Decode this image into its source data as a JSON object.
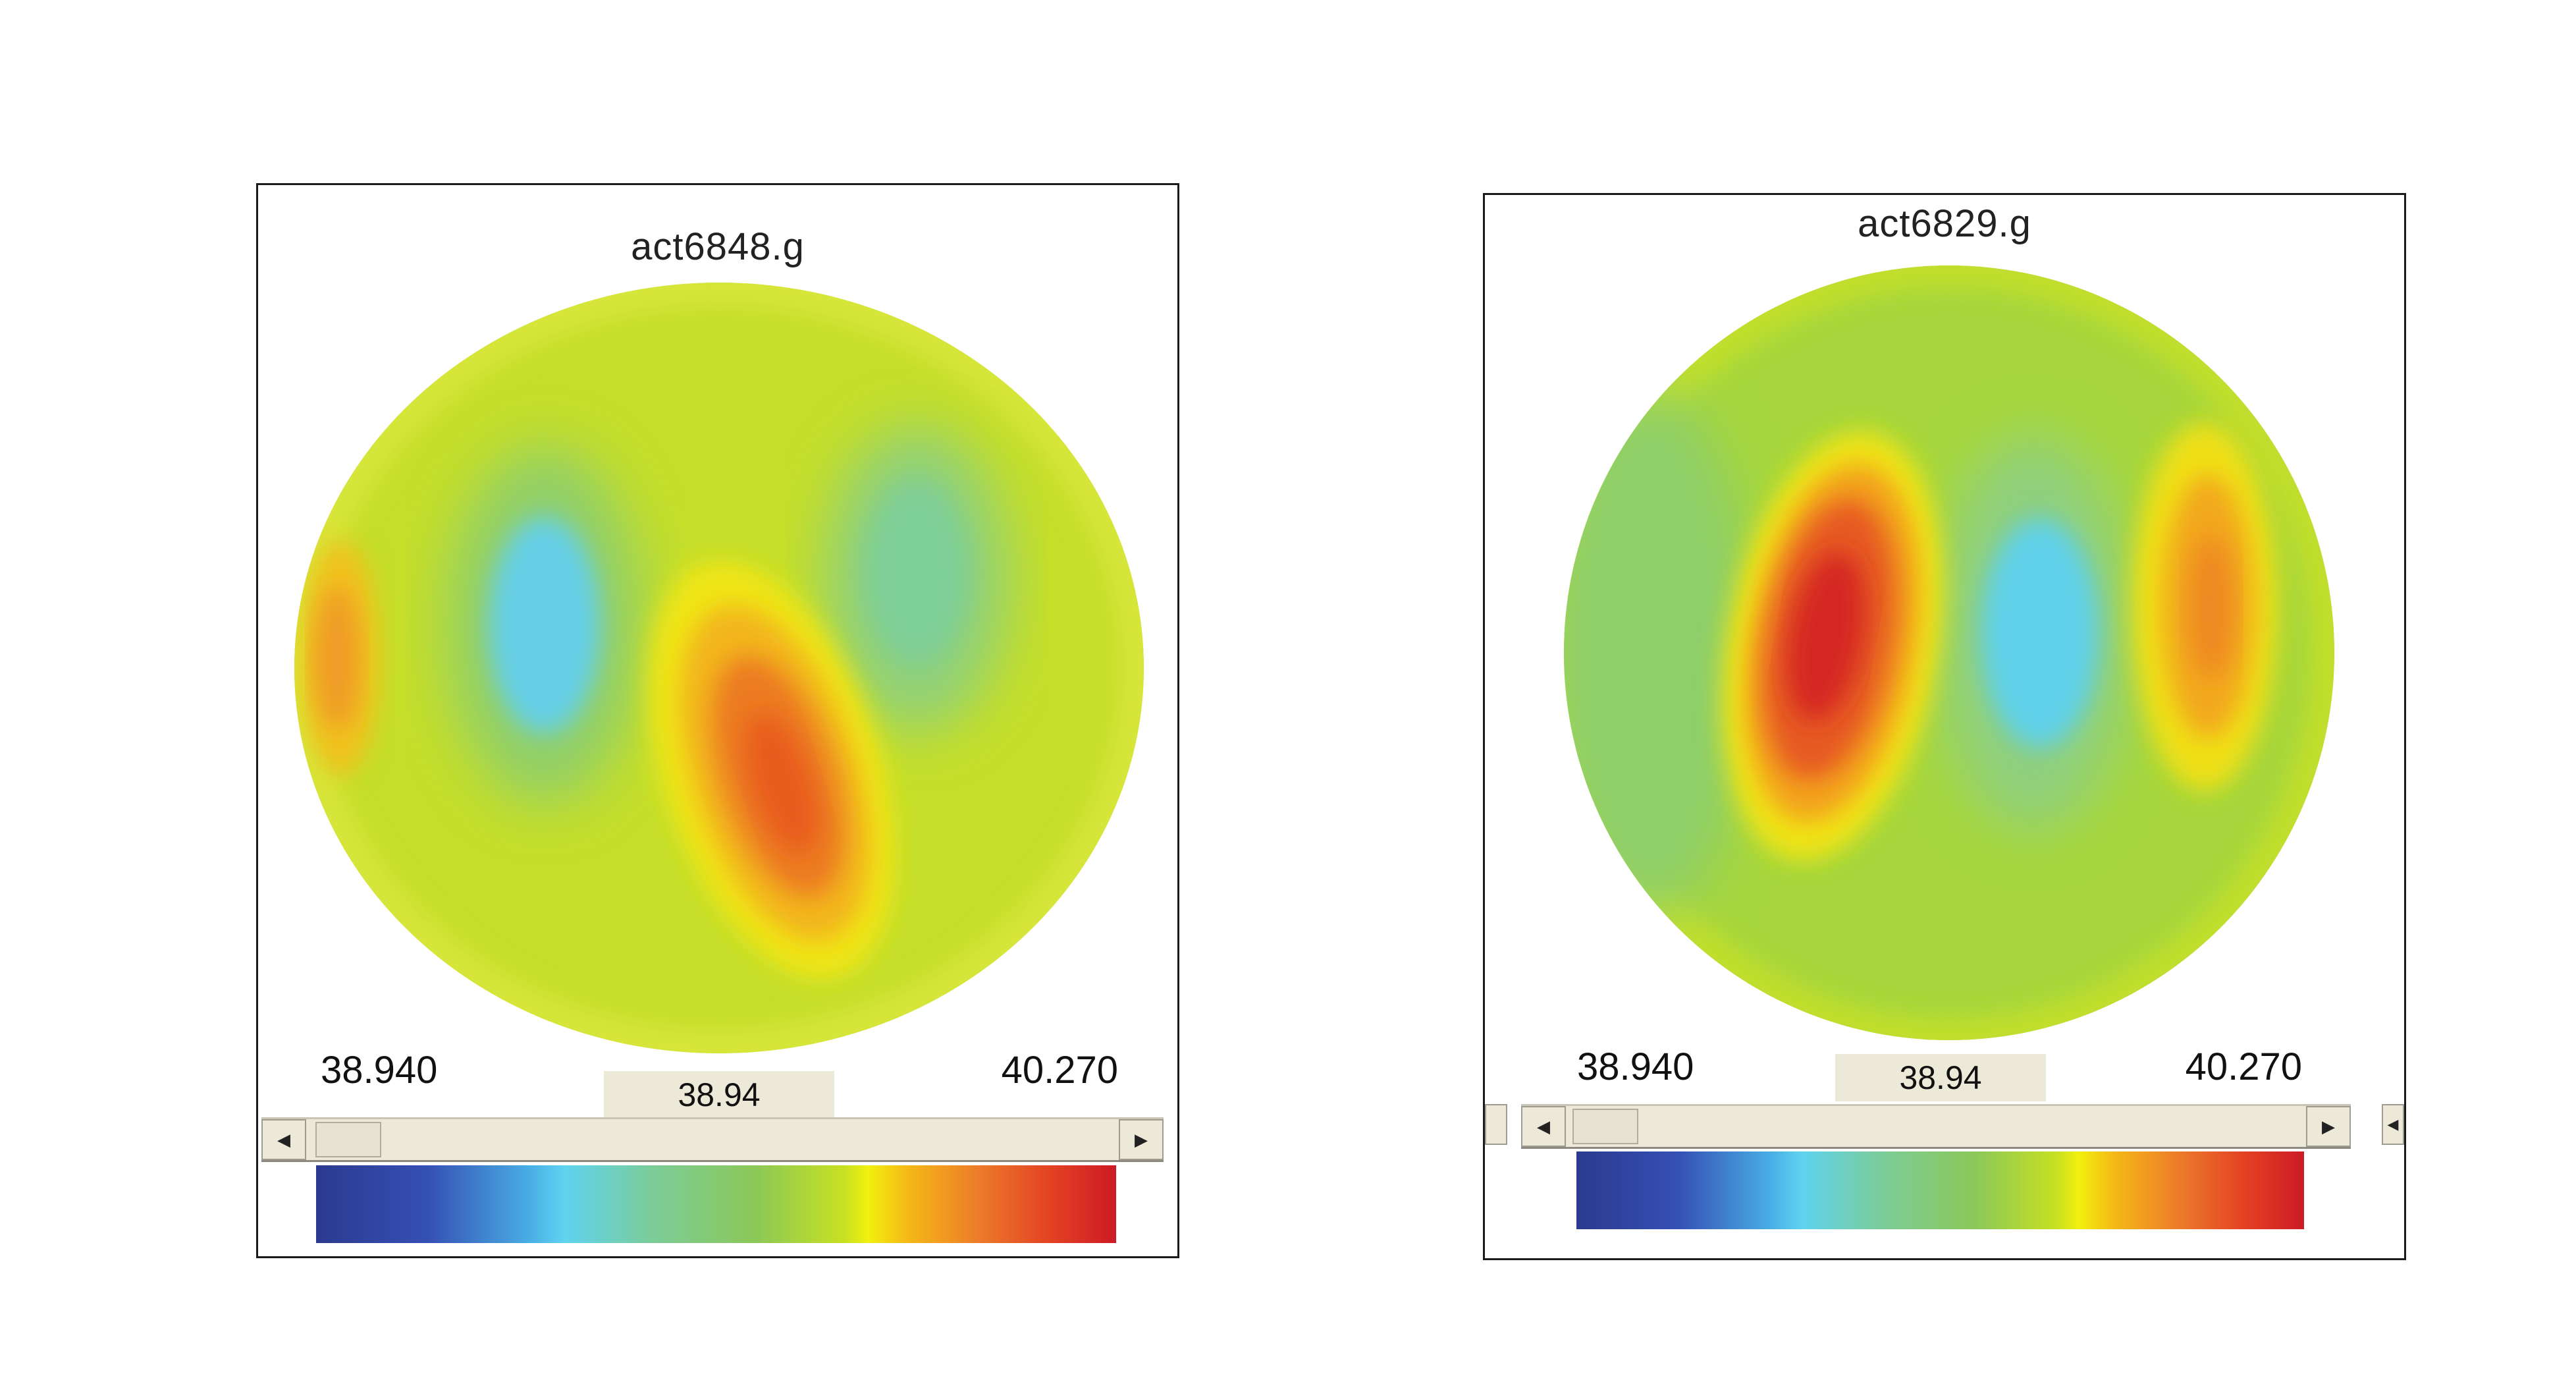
{
  "panels": [
    {
      "title": "act6848.g",
      "range_min": "38.940",
      "range_max": "40.270",
      "slider_value": "38.94"
    },
    {
      "title": "act6829.g",
      "range_min": "38.940",
      "range_max": "40.270",
      "slider_value": "38.94"
    }
  ],
  "colormap": [
    "#2b3a8f",
    "#4ab0e6",
    "#5fd3f0",
    "#7bcc98",
    "#c7e022",
    "#f2f00e",
    "#ec7a2a",
    "#cc1b25"
  ],
  "icons": {
    "scroll_left": "left-arrow-icon",
    "scroll_right": "right-arrow-icon"
  }
}
